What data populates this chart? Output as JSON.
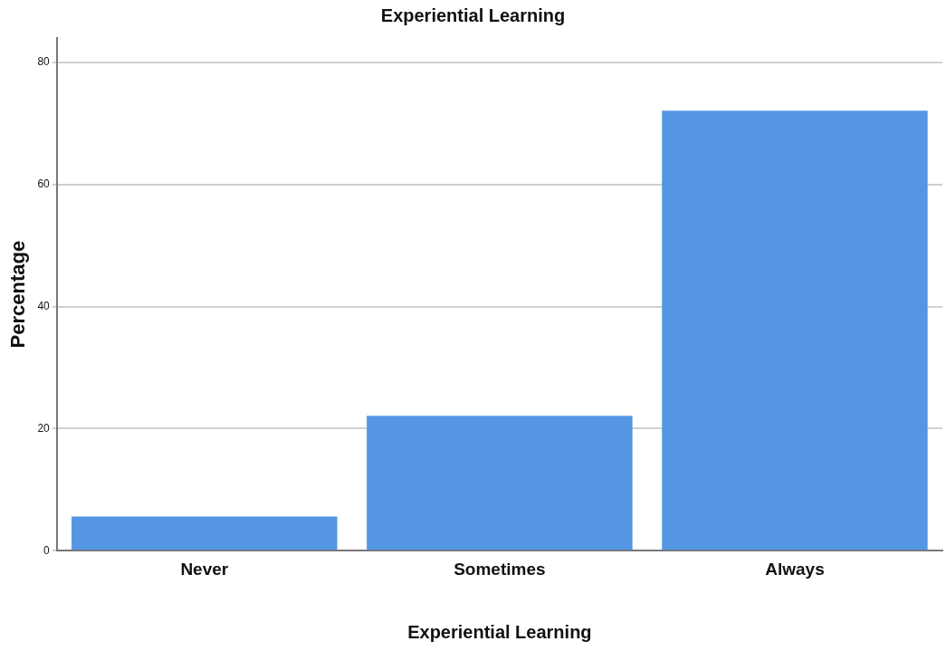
{
  "chart_data": {
    "type": "bar",
    "title": "Experiential Learning",
    "xlabel": "Experiential Learning",
    "ylabel": "Percentage",
    "categories": [
      "Never",
      "Sometimes",
      "Always"
    ],
    "values": [
      5.6,
      22.1,
      72.1
    ],
    "color": "#5596e3",
    "ylim": [
      0,
      84
    ],
    "yticks": [
      0,
      20,
      40,
      60,
      80
    ],
    "grid": "y"
  }
}
